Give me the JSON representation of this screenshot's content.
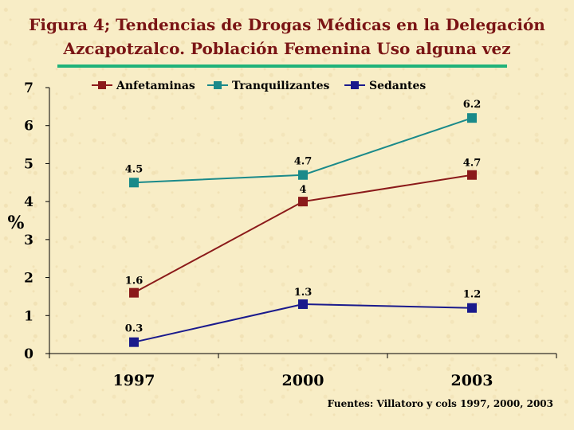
{
  "header": {
    "title_line1": "Figura 4; Tendencias de Drogas Médicas en  la Delegación",
    "title_line2": "Azcapotzalco. Población Femenina Uso alguna vez"
  },
  "source": "Fuentes: Villatoro y cols 1997, 2000, 2003",
  "colors": {
    "title": "#7a1414",
    "rule": "#20b27a",
    "background": "#f8edc6"
  },
  "chart_data": {
    "type": "line",
    "title": "Figura 4; Tendencias de Drogas Médicas en  la Delegación Azcapotzalco. Población Femenina Uso alguna vez",
    "xlabel": "",
    "ylabel": "%",
    "categories": [
      "1997",
      "2000",
      "2003"
    ],
    "ylim": [
      0,
      7
    ],
    "yticks": [
      "0",
      "1",
      "2",
      "3",
      "4",
      "5",
      "6",
      "7"
    ],
    "legend_position": "top",
    "grid": false,
    "series": [
      {
        "name": "Anfetaminas",
        "color": "#8b1a1a",
        "values": [
          1.6,
          4,
          4.7
        ],
        "labels": [
          "1.6",
          "4",
          "4.7"
        ]
      },
      {
        "name": "Tranquilizantes",
        "color": "#1a8a8a",
        "values": [
          4.5,
          4.7,
          6.2
        ],
        "labels": [
          "4.5",
          "4.7",
          "6.2"
        ]
      },
      {
        "name": "Sedantes",
        "color": "#1a1a8c",
        "values": [
          0.3,
          1.3,
          1.2
        ],
        "labels": [
          "0.3",
          "1.3",
          "1.2"
        ]
      }
    ]
  }
}
